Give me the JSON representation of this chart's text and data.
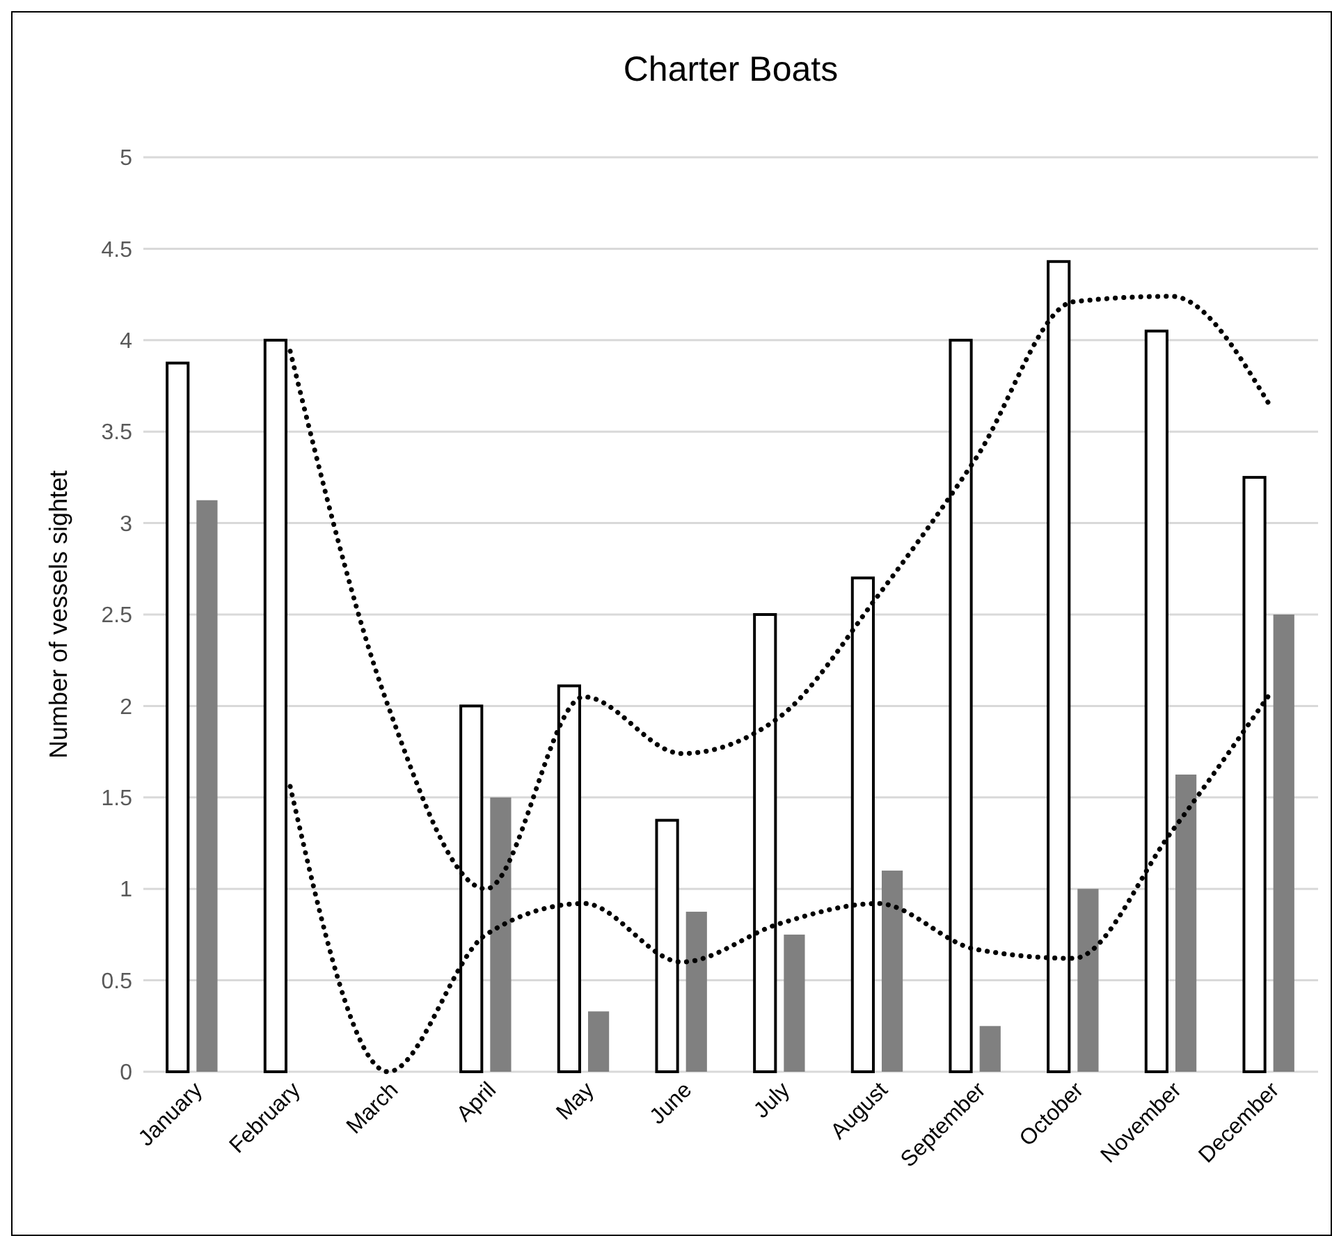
{
  "chart_data": {
    "type": "bar",
    "title": "Charter Boats",
    "ylabel": "Number of vessels sightet",
    "categories": [
      "January",
      "February",
      "March",
      "April",
      "May",
      "June",
      "July",
      "August",
      "September",
      "October",
      "November",
      "December"
    ],
    "series": [
      {
        "color": "#ffffff",
        "values": [
          3.875,
          4,
          0,
          2,
          2.11,
          1.375,
          2.5,
          2.7,
          4,
          4.43,
          4.05,
          3.25
        ]
      },
      {
        "color": "#808080",
        "values": [
          3.125,
          0,
          0,
          1.5,
          0.33,
          0.875,
          0.75,
          1.1,
          0.25,
          1.0,
          1.625,
          2.5
        ]
      },
      {
        "type": "line",
        "color": "#000000",
        "line_style": "dotted",
        "values": [
          null,
          3.94,
          2,
          1,
          2.05,
          1.74,
          1.94,
          2.6,
          3.35,
          4.21,
          4.24,
          3.65
        ]
      },
      {
        "type": "line",
        "color": "#000000",
        "line_style": "dotted",
        "values": [
          null,
          1.56,
          0,
          0.75,
          0.92,
          0.6,
          0.81,
          0.92,
          0.67,
          0.62,
          1.31,
          2.06
        ]
      }
    ],
    "ylim": [
      0,
      5
    ],
    "yticks": [
      0,
      0.5,
      1,
      1.5,
      2,
      2.5,
      3,
      3.5,
      4,
      4.5,
      5
    ],
    "grid": "y",
    "marker": "none"
  }
}
